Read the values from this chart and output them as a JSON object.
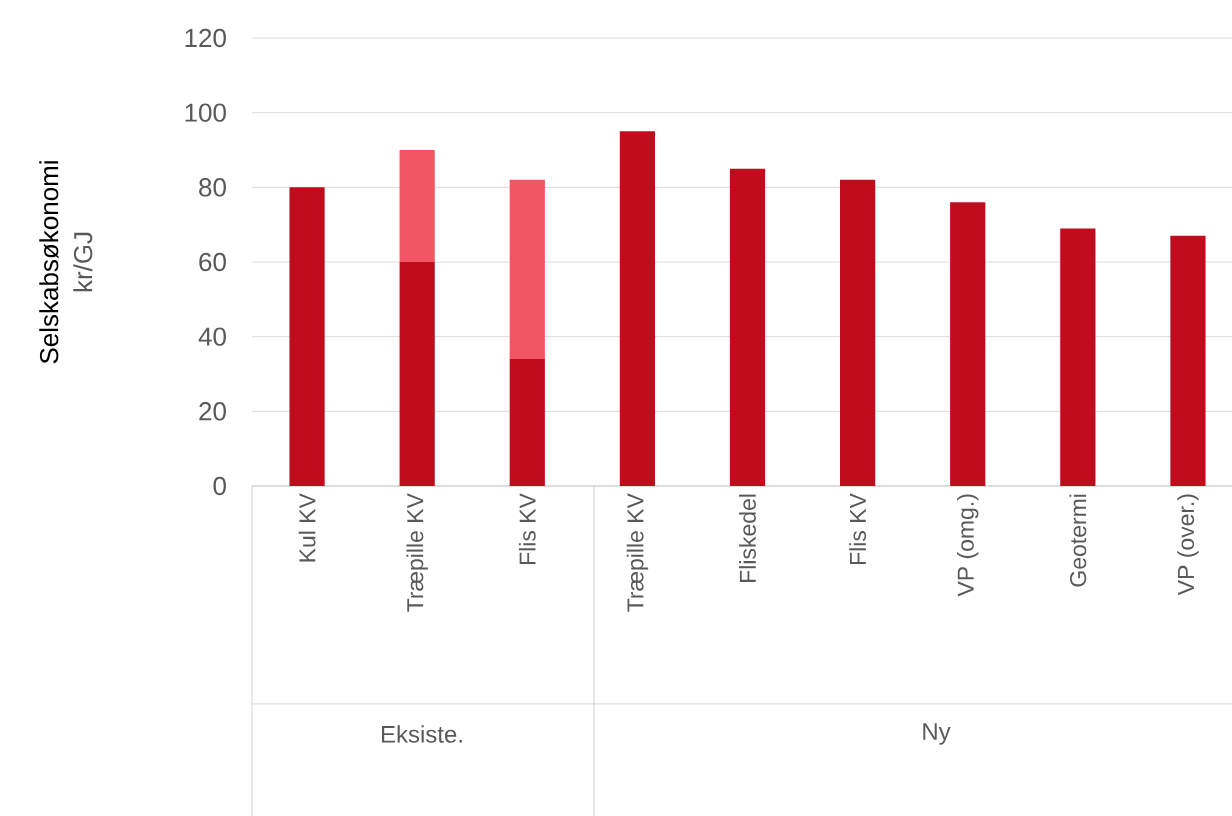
{
  "chart_data": {
    "type": "bar",
    "stacked": true,
    "ylabel": "Selskabsøkonomi",
    "categories": [
      "Kul KV",
      "Træpille KV",
      "Flis KV",
      "Træpille KV",
      "Fliskedel",
      "Flis KV",
      "VP (omg.)",
      "Geotermi",
      "VP (over.)"
    ],
    "series": [
      {
        "color": "#c00d1e",
        "values": [
          80,
          60,
          34,
          95,
          85,
          82,
          76,
          69,
          67
        ]
      },
      {
        "color": "#f25564",
        "values": [
          null,
          30,
          48,
          null,
          null,
          null,
          null,
          null,
          null
        ]
      }
    ],
    "ylim": [
      0,
      120
    ],
    "yticks": [
      0,
      20,
      40,
      60,
      80,
      100,
      120
    ],
    "grid": "y",
    "annotations": [
      "kr/GJ",
      "Eksiste.",
      "Ny"
    ]
  }
}
